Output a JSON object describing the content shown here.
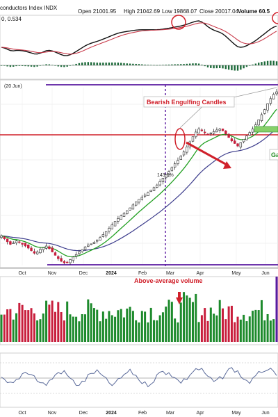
{
  "header": {
    "title": "conductors Index  INDX",
    "open": "Open 21001.95",
    "high": "High 21042.69",
    "low": "Low 19868.07",
    "close": "Close 20017.04",
    "volume": "Volume 60.5",
    "osc_value": "0, 0.534",
    "price_label": "(20 Jun)"
  },
  "colors": {
    "up": "#1d8a2c",
    "down": "#c81e3c",
    "ema_fast": "#22a022",
    "ema_slow": "#3c3c8c",
    "resistance": "#d0202a",
    "purple": "#5a1aa0"
  },
  "chart_data": {
    "type": "candlestick",
    "months": [
      "Oct",
      "Nov",
      "Dec",
      "2024",
      "Feb",
      "Mar",
      "Apr",
      "May",
      "Jun"
    ],
    "price_series": {
      "name": "close",
      "anchors": [
        [
          0,
          300
        ],
        [
          1,
          293
        ],
        [
          2,
          286
        ],
        [
          3,
          280
        ],
        [
          4,
          283
        ],
        [
          5,
          288
        ],
        [
          6,
          285
        ],
        [
          7,
          280
        ],
        [
          8,
          276
        ],
        [
          9,
          271
        ],
        [
          10,
          265
        ],
        [
          11,
          259
        ],
        [
          12,
          262
        ],
        [
          13,
          268
        ],
        [
          14,
          272
        ],
        [
          15,
          276
        ],
        [
          16,
          270
        ],
        [
          17,
          262
        ],
        [
          18,
          254
        ],
        [
          19,
          246
        ],
        [
          20,
          240
        ],
        [
          21,
          236
        ],
        [
          22,
          238
        ],
        [
          23,
          244
        ],
        [
          24,
          250
        ],
        [
          25,
          256
        ],
        [
          26,
          262
        ],
        [
          27,
          268
        ],
        [
          28,
          274
        ],
        [
          29,
          278
        ],
        [
          30,
          281
        ],
        [
          31,
          285
        ],
        [
          32,
          289
        ],
        [
          33,
          296
        ],
        [
          34,
          303
        ],
        [
          35,
          310
        ],
        [
          36,
          318
        ],
        [
          37,
          326
        ],
        [
          38,
          334
        ],
        [
          39,
          341
        ],
        [
          40,
          347
        ],
        [
          41,
          353
        ],
        [
          42,
          359
        ],
        [
          43,
          366
        ],
        [
          44,
          373
        ],
        [
          45,
          380
        ],
        [
          46,
          386
        ],
        [
          47,
          391
        ],
        [
          48,
          396
        ],
        [
          49,
          402
        ],
        [
          50,
          408
        ],
        [
          51,
          414
        ],
        [
          52,
          420
        ],
        [
          53,
          428
        ],
        [
          54,
          436
        ],
        [
          55,
          444
        ],
        [
          56,
          452
        ],
        [
          57,
          461
        ],
        [
          58,
          470
        ],
        [
          59,
          478
        ],
        [
          60,
          488
        ],
        [
          61,
          498
        ],
        [
          62,
          510
        ],
        [
          63,
          522
        ],
        [
          64,
          534
        ],
        [
          65,
          545
        ],
        [
          66,
          552
        ],
        [
          67,
          548
        ],
        [
          68,
          543
        ],
        [
          69,
          540
        ],
        [
          70,
          543
        ],
        [
          71,
          546
        ],
        [
          72,
          550
        ],
        [
          73,
          552
        ],
        [
          74,
          548
        ],
        [
          75,
          540
        ],
        [
          76,
          532
        ],
        [
          77,
          524
        ],
        [
          78,
          518
        ],
        [
          79,
          512
        ],
        [
          80,
          520
        ],
        [
          81,
          528
        ],
        [
          82,
          536
        ],
        [
          83,
          544
        ],
        [
          84,
          552
        ],
        [
          85,
          562
        ],
        [
          86,
          574
        ],
        [
          87,
          586
        ],
        [
          88,
          598
        ],
        [
          89,
          612
        ],
        [
          90,
          624
        ],
        [
          91,
          634
        ],
        [
          92,
          640
        ]
      ],
      "y_domain": [
        230,
        650
      ]
    },
    "indicator_labels": {
      "percent_gain": "143.6%"
    },
    "annotations": {
      "bearish": "Bearish Engulfing Candles",
      "volume": "Above-average volume",
      "gap": "Ga"
    }
  }
}
